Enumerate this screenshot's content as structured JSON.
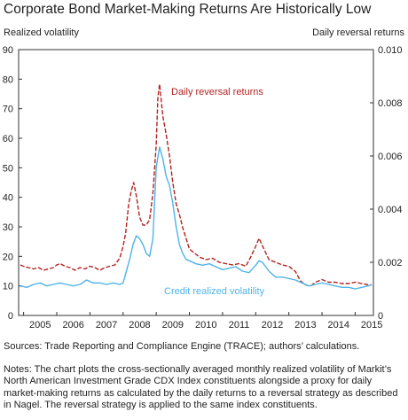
{
  "chart_data": {
    "type": "line",
    "title": "Corporate Bond Market-Making Returns Are Historically Low",
    "ylabel": "Realized volatility",
    "y2label": "Daily reversal returns",
    "xlim": [
      2004.85,
      2015.55
    ],
    "ylim": [
      0,
      90
    ],
    "y2lim": [
      0,
      0.01
    ],
    "x_ticks": [
      "2005",
      "2006",
      "2007",
      "2008",
      "2009",
      "2010",
      "2011",
      "2012",
      "2013",
      "2014",
      "2015"
    ],
    "y_ticks": [
      "0",
      "10",
      "20",
      "30",
      "40",
      "50",
      "60",
      "70",
      "80",
      "90"
    ],
    "y2_ticks": [
      "0",
      "0.002",
      "0.004",
      "0.006",
      "0.008",
      "0.010"
    ],
    "grid": false,
    "series": [
      {
        "name": "Daily reversal returns",
        "axis": "right",
        "style": "dashed",
        "color": "#b22222",
        "x": [
          2004.9,
          2005.0,
          2005.15,
          2005.3,
          2005.45,
          2005.6,
          2005.75,
          2005.9,
          2006.0,
          2006.1,
          2006.25,
          2006.4,
          2006.55,
          2006.7,
          2006.85,
          2007.0,
          2007.15,
          2007.3,
          2007.45,
          2007.6,
          2007.75,
          2007.9,
          2008.0,
          2008.08,
          2008.17,
          2008.25,
          2008.32,
          2008.4,
          2008.5,
          2008.6,
          2008.7,
          2008.8,
          2008.9,
          2009.0,
          2009.05,
          2009.1,
          2009.2,
          2009.3,
          2009.4,
          2009.5,
          2009.6,
          2009.7,
          2009.8,
          2009.9,
          2010.0,
          2010.15,
          2010.3,
          2010.5,
          2010.7,
          2010.9,
          2011.1,
          2011.3,
          2011.5,
          2011.7,
          2011.85,
          2012.0,
          2012.1,
          2012.25,
          2012.4,
          2012.6,
          2012.8,
          2013.0,
          2013.2,
          2013.35,
          2013.5,
          2013.65,
          2013.8,
          2014.0,
          2014.2,
          2014.4,
          2014.6,
          2014.8,
          2015.0,
          2015.2,
          2015.4,
          2015.5
        ],
        "values": [
          0.0019,
          0.00185,
          0.0018,
          0.00175,
          0.0018,
          0.0017,
          0.00175,
          0.0018,
          0.0019,
          0.00195,
          0.00185,
          0.0018,
          0.0017,
          0.0018,
          0.00175,
          0.00185,
          0.0018,
          0.0017,
          0.0018,
          0.00185,
          0.0019,
          0.00215,
          0.0026,
          0.0031,
          0.0042,
          0.0047,
          0.005,
          0.0045,
          0.0037,
          0.0034,
          0.0034,
          0.0036,
          0.0046,
          0.0064,
          0.0082,
          0.0087,
          0.0075,
          0.0068,
          0.006,
          0.005,
          0.0042,
          0.0038,
          0.0033,
          0.0029,
          0.0025,
          0.00235,
          0.0022,
          0.0021,
          0.00215,
          0.002,
          0.00195,
          0.0019,
          0.00195,
          0.00185,
          0.0022,
          0.0026,
          0.0029,
          0.0025,
          0.0021,
          0.002,
          0.0019,
          0.00185,
          0.00165,
          0.0013,
          0.00115,
          0.0011,
          0.00125,
          0.00135,
          0.00125,
          0.00125,
          0.0012,
          0.0012,
          0.00125,
          0.0012,
          0.00115,
          0.00115
        ]
      },
      {
        "name": "Credit realized volatility",
        "axis": "left",
        "style": "solid",
        "color": "#4fb3e8",
        "x": [
          2004.9,
          2005.1,
          2005.3,
          2005.5,
          2005.7,
          2005.9,
          2006.1,
          2006.3,
          2006.5,
          2006.7,
          2006.9,
          2007.1,
          2007.3,
          2007.5,
          2007.7,
          2007.9,
          2008.0,
          2008.1,
          2008.2,
          2008.3,
          2008.4,
          2008.5,
          2008.6,
          2008.7,
          2008.8,
          2008.9,
          2009.0,
          2009.1,
          2009.2,
          2009.3,
          2009.4,
          2009.5,
          2009.6,
          2009.7,
          2009.8,
          2009.9,
          2010.0,
          2010.2,
          2010.4,
          2010.6,
          2010.8,
          2011.0,
          2011.2,
          2011.4,
          2011.6,
          2011.8,
          2012.0,
          2012.1,
          2012.2,
          2012.4,
          2012.6,
          2012.8,
          2013.0,
          2013.2,
          2013.4,
          2013.6,
          2013.8,
          2014.0,
          2014.2,
          2014.4,
          2014.6,
          2014.8,
          2015.0,
          2015.2,
          2015.4,
          2015.5
        ],
        "values": [
          10,
          9.5,
          10.5,
          11,
          10,
          10.5,
          11,
          10.5,
          10,
          10.5,
          12,
          11,
          11,
          10.5,
          11,
          10.5,
          11,
          15,
          19,
          24,
          27,
          26,
          24,
          21,
          20,
          26,
          50,
          57,
          53,
          47,
          44,
          38,
          30,
          24,
          21,
          19,
          18.5,
          17.5,
          17,
          17.5,
          16.5,
          15.5,
          16,
          16.5,
          15,
          14.5,
          17,
          18.5,
          18,
          15,
          13,
          13,
          12.5,
          12,
          11,
          10,
          10.5,
          11,
          10.5,
          10,
          9.5,
          9.5,
          9,
          9.5,
          10,
          10.5
        ]
      }
    ],
    "annotations": [
      "Daily reversal returns",
      "Credit realized volatility"
    ]
  },
  "source": "Sources: Trade Reporting and Compliance Engine (TRACE); authors’ calculations.",
  "notes": "Notes: The chart plots the cross-sectionally averaged monthly realized volatility of Markit’s North American Investment Grade CDX Index constituents alongside a proxy for daily market-making returns as calculated by the daily returns to a reversal strategy as described in Nagel. The reversal strategy is applied to the same index constituents."
}
